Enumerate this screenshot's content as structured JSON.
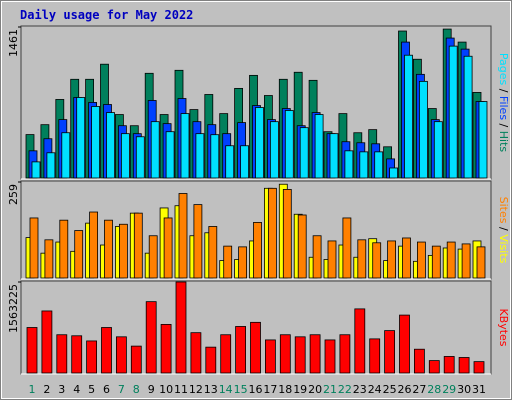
{
  "title": "Daily usage for May 2022",
  "chart_data": [
    {
      "type": "bar",
      "ylim": [
        0,
        1461
      ],
      "yticks": [
        1461
      ],
      "series": [
        {
          "name": "Hits",
          "color": "#00805c",
          "values": [
            420,
            516,
            760,
            955,
            955,
            1101,
            614,
            506,
            1013,
            614,
            1042,
            662,
            808,
            623,
            867,
            993,
            798,
            955,
            1023,
            945,
            448,
            623,
            438,
            468,
            302,
            1422,
            1149,
            672,
            1441,
            1315,
            828
          ]
        },
        {
          "name": "Files",
          "color": "#0040ff",
          "values": [
            263,
            380,
            565,
            779,
            731,
            711,
            506,
            429,
            750,
            526,
            769,
            545,
            516,
            429,
            536,
            701,
            565,
            672,
            506,
            633,
            429,
            351,
            341,
            331,
            185,
            1315,
            1003,
            565,
            1354,
            1247,
            740
          ]
        },
        {
          "name": "Pages",
          "color": "#00e0ff",
          "values": [
            156,
            244,
            438,
            779,
            692,
            633,
            429,
            399,
            545,
            448,
            623,
            429,
            419,
            312,
            312,
            682,
            545,
            653,
            487,
            614,
            429,
            263,
            253,
            253,
            97,
            1188,
            935,
            545,
            1276,
            1178,
            740
          ]
        }
      ]
    },
    {
      "type": "bar",
      "ylim": [
        0,
        259
      ],
      "yticks": [
        259
      ],
      "series": [
        {
          "name": "Visits",
          "color": "#ffff00",
          "values": [
            109,
            67,
            97,
            72,
            148,
            89,
            139,
            175,
            67,
            189,
            195,
            114,
            122,
            47,
            50,
            100,
            242,
            253,
            172,
            56,
            50,
            89,
            56,
            106,
            47,
            86,
            45,
            61,
            81,
            78,
            100
          ]
        },
        {
          "name": "Sites",
          "color": "#ff8000",
          "values": [
            162,
            103,
            156,
            128,
            178,
            156,
            145,
            175,
            114,
            162,
            228,
            198,
            139,
            86,
            84,
            150,
            242,
            239,
            170,
            114,
            100,
            162,
            103,
            95,
            100,
            108,
            97,
            86,
            97,
            92,
            84
          ]
        }
      ]
    },
    {
      "type": "bar",
      "ylim": [
        0,
        1563225
      ],
      "yticks": [
        1563225
      ],
      "categories": [
        "1",
        "2",
        "3",
        "4",
        "5",
        "6",
        "7",
        "8",
        "9",
        "10",
        "11",
        "12",
        "13",
        "14",
        "15",
        "16",
        "17",
        "18",
        "19",
        "20",
        "21",
        "22",
        "23",
        "24",
        "25",
        "26",
        "27",
        "28",
        "29",
        "30",
        "31"
      ],
      "category_colors": [
        "#00805c",
        "#000000",
        "#000000",
        "#000000",
        "#000000",
        "#000000",
        "#00805c",
        "#00805c",
        "#000000",
        "#000000",
        "#000000",
        "#000000",
        "#000000",
        "#00805c",
        "#00805c",
        "#000000",
        "#000000",
        "#000000",
        "#000000",
        "#000000",
        "#00805c",
        "#00805c",
        "#000000",
        "#000000",
        "#000000",
        "#000000",
        "#000000",
        "#00805c",
        "#00805c",
        "#000000",
        "#000000"
      ],
      "series": [
        {
          "name": "KBytes",
          "color": "#ff0000",
          "values": [
            781600,
            1065800,
            657300,
            639500,
            550700,
            781600,
            621700,
            461900,
            1225700,
            834900,
            1563225,
            692800,
            444100,
            657300,
            799400,
            870400,
            568400,
            657300,
            621700,
            657300,
            568400,
            657300,
            1101400,
            586200,
            728300,
            994800,
            408600,
            213200,
            284200,
            266500,
            195400
          ]
        }
      ]
    }
  ]
}
